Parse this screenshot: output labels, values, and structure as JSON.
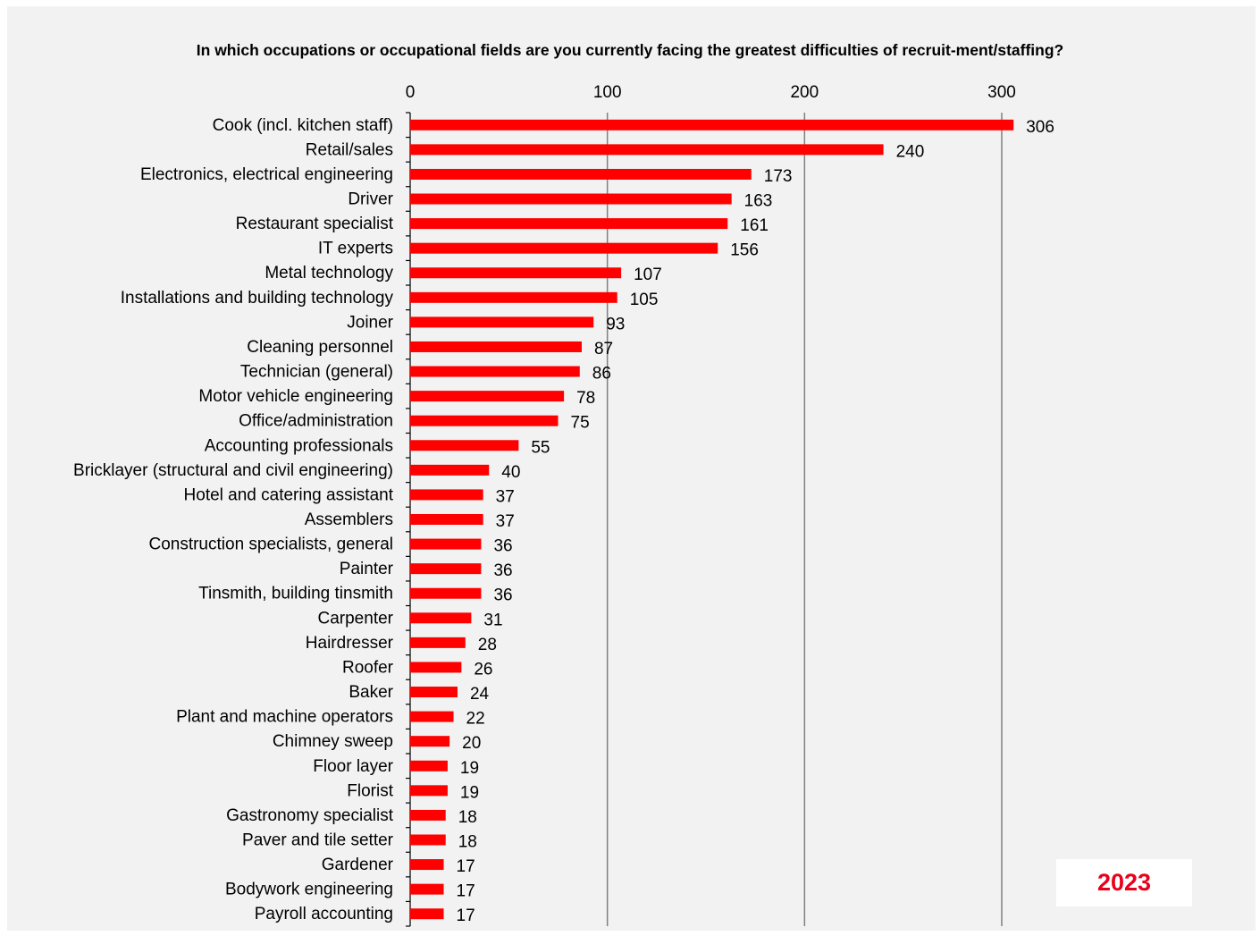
{
  "chart_data": {
    "type": "bar",
    "orientation": "horizontal",
    "title": "In which occupations or occupational fields are you currently facing the greatest difficulties of recruit-ment/staffing?",
    "xlim": [
      0,
      300
    ],
    "xticks": [
      0,
      100,
      200,
      300
    ],
    "axis_position": "top",
    "grid": "vertical",
    "bar_color": "#ff0000",
    "categories": [
      "Cook (incl. kitchen staff)",
      "Retail/sales",
      "Electronics, electrical engineering",
      "Driver",
      "Restaurant specialist",
      "IT experts",
      "Metal technology",
      "Installations and building technology",
      "Joiner",
      "Cleaning personnel",
      "Technician (general)",
      "Motor vehicle engineering",
      "Office/administration",
      "Accounting professionals",
      "Bricklayer (structural and civil engineering)",
      "Hotel and catering assistant",
      "Assemblers",
      "Construction specialists, general",
      "Painter",
      "Tinsmith, building tinsmith",
      "Carpenter",
      "Hairdresser",
      "Roofer",
      "Baker",
      "Plant and machine operators",
      "Chimney sweep",
      "Floor layer",
      "Florist",
      "Gastronomy specialist",
      "Paver and tile setter",
      "Gardener",
      "Bodywork engineering",
      "Payroll accounting"
    ],
    "values": [
      306,
      240,
      173,
      163,
      161,
      156,
      107,
      105,
      93,
      87,
      86,
      78,
      75,
      55,
      40,
      37,
      37,
      36,
      36,
      36,
      31,
      28,
      26,
      24,
      22,
      20,
      19,
      19,
      18,
      18,
      17,
      17,
      17
    ]
  },
  "badge": {
    "year": "2023",
    "color": "#e8001c"
  }
}
